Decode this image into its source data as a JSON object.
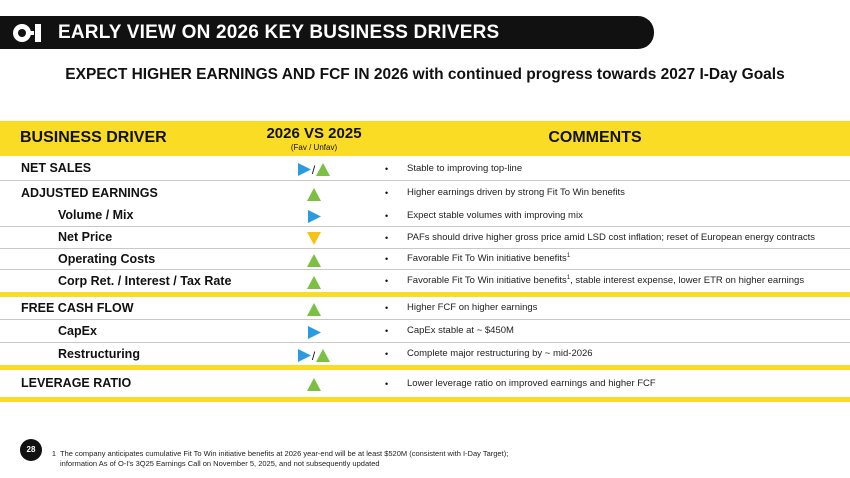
{
  "header": {
    "title": "EARLY VIEW ON 2026 KEY BUSINESS DRIVERS",
    "logo_text": "O-I"
  },
  "subtitle": "EXPECT HIGHER EARNINGS AND FCF IN 2026 with continued progress towards 2027 I-Day Goals",
  "table": {
    "col_driver": "BUSINESS DRIVER",
    "col_vs": "2026 VS 2025",
    "col_vs_sub": "(Fav / Unfav)",
    "col_comments": "COMMENTS",
    "rows": [
      {
        "label": "NET SALES",
        "indicator": "neutral-fav",
        "comment": "Stable to improving top-line",
        "sup": ""
      },
      {
        "label": "ADJUSTED EARNINGS",
        "indicator": "fav",
        "comment": "Higher earnings driven by strong Fit To Win benefits",
        "sup": ""
      },
      {
        "label": "Volume / Mix",
        "indicator": "neutral",
        "comment": "Expect stable volumes with improving mix",
        "sup": ""
      },
      {
        "label": "Net Price",
        "indicator": "unfav",
        "comment": "PAFs should drive higher gross price amid LSD cost inflation;  reset of European energy contracts",
        "sup": ""
      },
      {
        "label": "Operating Costs",
        "indicator": "fav",
        "comment": "Favorable Fit To Win initiative benefits",
        "sup": "1"
      },
      {
        "label": "Corp Ret. / Interest / Tax Rate",
        "indicator": "fav",
        "comment": "Favorable Fit To Win initiative benefits",
        "sup": "1",
        "comment_tail": ", stable interest expense, lower ETR on higher earnings"
      },
      {
        "label": "FREE CASH FLOW",
        "indicator": "fav",
        "comment": "Higher FCF on higher earnings",
        "sup": ""
      },
      {
        "label": "CapEx",
        "indicator": "neutral",
        "comment": "CapEx stable at ~ $450M",
        "sup": ""
      },
      {
        "label": "Restructuring",
        "indicator": "neutral-fav",
        "comment": "Complete major restructuring by ~ mid-2026",
        "sup": ""
      },
      {
        "label": "LEVERAGE RATIO",
        "indicator": "fav",
        "comment": "Lower leverage ratio on improved earnings and higher FCF",
        "sup": ""
      }
    ]
  },
  "bullet_char": "•",
  "slash_char": "/",
  "footer": {
    "page_number": "28",
    "footnote_mark": "1",
    "footnote_line1": "The company anticipates cumulative Fit To Win initiative benefits at 2026 year-end will be at least $520M (consistent with I-Day Target);",
    "footnote_line2": "information As of O-I's 3Q25 Earnings Call on November 5, 2025, and not subsequently updated"
  },
  "colors": {
    "accent": "#fbdc24",
    "fav": "#7bc043",
    "neutral": "#2a9be0",
    "unfav": "#f4c31a",
    "dark": "#111111"
  }
}
